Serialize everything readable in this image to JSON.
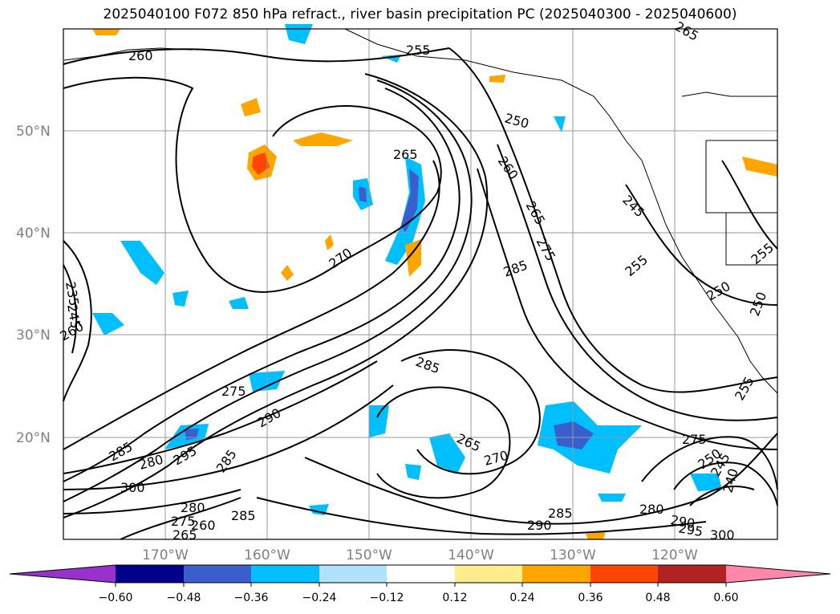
{
  "title": "2025040100 F072 850 hPa refract., river basin precipitation PC (2025040300 - 2025040600)",
  "map": {
    "lat_labels": [
      "50°N",
      "40°N",
      "30°N",
      "20°N"
    ],
    "lon_labels": [
      "170°W",
      "160°W",
      "150°W",
      "140°W",
      "130°W",
      "120°W"
    ],
    "contour_labels": [
      "260",
      "255",
      "250",
      "265",
      "260",
      "265",
      "275",
      "285",
      "270",
      "245",
      "255",
      "250",
      "250",
      "255",
      "235",
      "245",
      "260",
      "275",
      "285",
      "265",
      "270",
      "285",
      "275",
      "290",
      "285",
      "280",
      "295",
      "285",
      "300",
      "280",
      "275",
      "265",
      "260",
      "285",
      "290",
      "280",
      "290",
      "295",
      "300",
      "250",
      "245",
      "240",
      "255",
      "265"
    ]
  },
  "colorbar": {
    "tick_labels": [
      "−0.60",
      "−0.48",
      "−0.36",
      "−0.24",
      "−0.12",
      "0.12",
      "0.24",
      "0.36",
      "0.48",
      "0.60"
    ],
    "colors": [
      "#9932cc",
      "#00008b",
      "#3a5fcd",
      "#00bfff",
      "#b0e2ff",
      "#ffffff",
      "#ffec8b",
      "#ffa500",
      "#ff4500",
      "#b22222",
      "#ff88aa"
    ]
  }
}
